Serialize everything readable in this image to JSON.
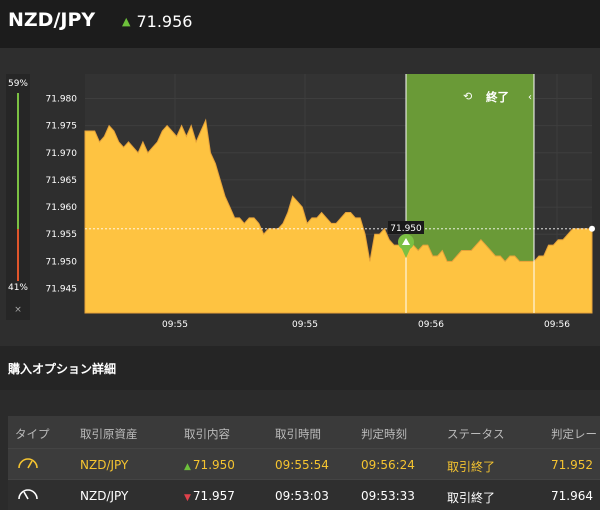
{
  "header": {
    "pair": "NZD/JPY",
    "price": "71.956"
  },
  "ratio": {
    "top": "59%",
    "bottom": "41%",
    "close": "×",
    "up_fraction": 0.59,
    "down_fraction": 0.41
  },
  "chart": {
    "ylabels": [
      "71.980",
      "71.975",
      "71.970",
      "71.965",
      "71.960",
      "71.955",
      "71.950",
      "71.945"
    ],
    "xlabels": [
      "09:55",
      "09:55",
      "09:56",
      "09:56"
    ],
    "end_label": "終了",
    "marker_price": "71.950",
    "colors": {
      "area": "#fec341",
      "window": "#6a9a37",
      "line": "#e6a23a"
    }
  },
  "chart_data": {
    "type": "area",
    "ylim": [
      71.9405,
      71.9845
    ],
    "entry": 71.95,
    "current": 71.956,
    "values": [
      71.974,
      71.974,
      71.974,
      71.972,
      71.973,
      71.975,
      71.974,
      71.972,
      71.971,
      71.972,
      71.971,
      71.97,
      71.972,
      71.97,
      71.971,
      71.972,
      71.974,
      71.975,
      71.974,
      71.973,
      71.975,
      71.973,
      71.975,
      71.972,
      71.974,
      71.976,
      71.97,
      71.968,
      71.965,
      71.962,
      71.96,
      71.958,
      71.958,
      71.957,
      71.958,
      71.958,
      71.957,
      71.955,
      71.956,
      71.956,
      71.956,
      71.957,
      71.959,
      71.962,
      71.961,
      71.96,
      71.957,
      71.958,
      71.958,
      71.959,
      71.958,
      71.957,
      71.957,
      71.958,
      71.959,
      71.959,
      71.958,
      71.958,
      71.955,
      71.95,
      71.955,
      71.955,
      71.956,
      71.954,
      71.953,
      71.953,
      71.954,
      71.953,
      71.953,
      71.952,
      71.953,
      71.953,
      71.951,
      71.951,
      71.952,
      71.95,
      71.95,
      71.951,
      71.952,
      71.952,
      71.952,
      71.953,
      71.954,
      71.953,
      71.952,
      71.951,
      71.951,
      71.95,
      71.951,
      71.951,
      71.95,
      71.95,
      71.95,
      71.95,
      71.951,
      71.951,
      71.953,
      71.953,
      71.954,
      71.954,
      71.955,
      71.956,
      71.956,
      71.956,
      71.956,
      71.956
    ]
  },
  "details": {
    "title": "購入オプション詳細",
    "headers": [
      "タイプ",
      "取引原資産",
      "取引内容",
      "取引時間",
      "判定時刻",
      "ステータス",
      "判定レー"
    ],
    "rows": [
      {
        "asset": "NZD/JPY",
        "content": "71.950",
        "time": "09:55:54",
        "judge": "09:56:24",
        "status": "取引終了",
        "rate": "71.952"
      },
      {
        "asset": "NZD/JPY",
        "content": "71.957",
        "time": "09:53:03",
        "judge": "09:53:33",
        "status": "取引終了",
        "rate": "71.964"
      }
    ]
  }
}
